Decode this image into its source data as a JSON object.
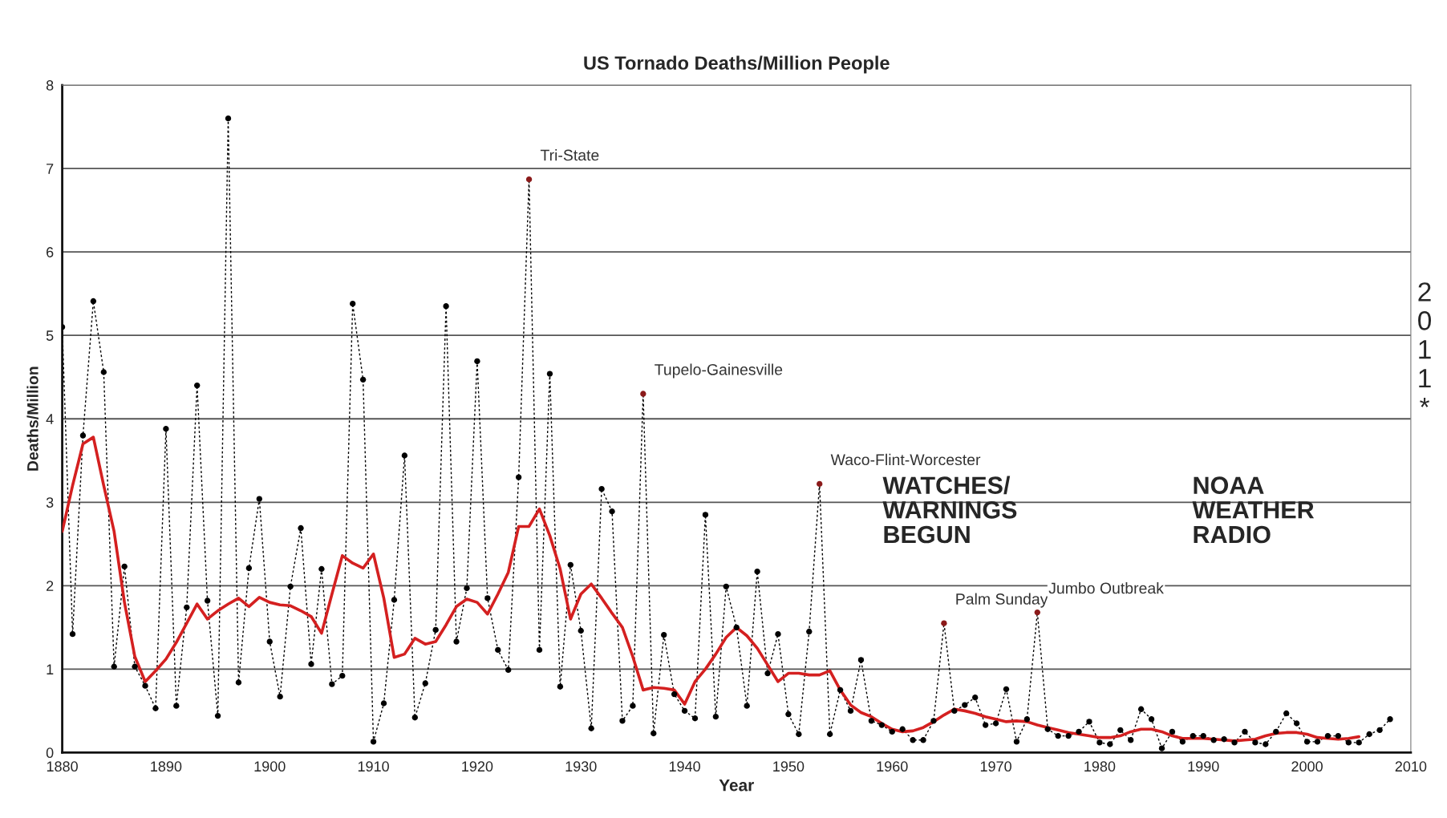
{
  "chart_data": {
    "type": "line",
    "title": "US Tornado Deaths/Million People",
    "xlabel": "Year",
    "ylabel": "Deaths/Million",
    "xlim": [
      1880,
      2010
    ],
    "xticks": [
      1880,
      1890,
      1900,
      1910,
      1920,
      1930,
      1940,
      1950,
      1960,
      1970,
      1980,
      1990,
      2000,
      2010
    ],
    "ylim": [
      0,
      8
    ],
    "yticks": [
      0,
      1,
      2,
      3,
      4,
      5,
      6,
      7,
      8
    ],
    "grid": "y",
    "legend": false,
    "series": [
      {
        "color": "#000000",
        "marker": "circle",
        "line_style": "dotted",
        "x": [
          1880,
          1881,
          1882,
          1883,
          1884,
          1885,
          1886,
          1887,
          1888,
          1889,
          1890,
          1891,
          1892,
          1893,
          1894,
          1895,
          1896,
          1897,
          1898,
          1899,
          1900,
          1901,
          1902,
          1903,
          1904,
          1905,
          1906,
          1907,
          1908,
          1909,
          1910,
          1911,
          1912,
          1913,
          1914,
          1915,
          1916,
          1917,
          1918,
          1919,
          1920,
          1921,
          1922,
          1923,
          1924,
          1925,
          1926,
          1927,
          1928,
          1929,
          1930,
          1931,
          1932,
          1933,
          1934,
          1935,
          1936,
          1937,
          1938,
          1939,
          1940,
          1941,
          1942,
          1943,
          1944,
          1945,
          1946,
          1947,
          1948,
          1949,
          1950,
          1951,
          1952,
          1953,
          1954,
          1955,
          1956,
          1957,
          1958,
          1959,
          1960,
          1961,
          1962,
          1963,
          1964,
          1965,
          1966,
          1967,
          1968,
          1969,
          1970,
          1971,
          1972,
          1973,
          1974,
          1975,
          1976,
          1977,
          1978,
          1979,
          1980,
          1981,
          1982,
          1983,
          1984,
          1985,
          1986,
          1987,
          1988,
          1989,
          1990,
          1991,
          1992,
          1993,
          1994,
          1995,
          1996,
          1997,
          1998,
          1999,
          2000,
          2001,
          2002,
          2003,
          2004,
          2005,
          2006,
          2007,
          2008
        ],
        "values": [
          5.1,
          1.42,
          3.8,
          5.41,
          4.56,
          1.03,
          2.23,
          1.03,
          0.8,
          0.53,
          3.88,
          0.56,
          1.74,
          4.4,
          1.82,
          0.44,
          7.6,
          0.84,
          2.21,
          3.04,
          1.33,
          0.67,
          1.99,
          2.69,
          1.06,
          2.2,
          0.82,
          0.92,
          5.38,
          4.47,
          0.13,
          0.59,
          1.83,
          3.56,
          0.42,
          0.83,
          1.47,
          5.35,
          1.33,
          1.97,
          4.69,
          1.85,
          1.23,
          0.99,
          3.3,
          6.87,
          1.23,
          4.54,
          0.79,
          2.25,
          1.46,
          0.29,
          3.16,
          2.89,
          0.38,
          0.56,
          4.3,
          0.23,
          1.41,
          0.7,
          0.5,
          0.41,
          2.85,
          0.43,
          1.99,
          1.5,
          0.56,
          2.17,
          0.95,
          1.42,
          0.46,
          0.22,
          1.45,
          3.22,
          0.22,
          0.75,
          0.5,
          1.11,
          0.38,
          0.33,
          0.25,
          0.28,
          0.15,
          0.15,
          0.38,
          1.55,
          0.5,
          0.57,
          0.66,
          0.33,
          0.35,
          0.76,
          0.13,
          0.4,
          1.68,
          0.28,
          0.2,
          0.2,
          0.25,
          0.37,
          0.12,
          0.1,
          0.27,
          0.15,
          0.52,
          0.4,
          0.05,
          0.25,
          0.13,
          0.2,
          0.2,
          0.15,
          0.16,
          0.12,
          0.25,
          0.12,
          0.1,
          0.25,
          0.47,
          0.35,
          0.13,
          0.13,
          0.2,
          0.2,
          0.12,
          0.12,
          0.22,
          0.27,
          0.4
        ],
        "colors": [
          "#000000",
          "#000000",
          "#000000",
          "#000000",
          "#000000",
          "#000000",
          "#000000",
          "#000000",
          "#000000",
          "#000000",
          "#000000",
          "#000000",
          "#000000",
          "#000000",
          "#000000",
          "#000000",
          "#000000",
          "#000000",
          "#000000",
          "#000000",
          "#000000",
          "#000000",
          "#000000",
          "#000000",
          "#000000",
          "#000000",
          "#000000",
          "#000000",
          "#000000",
          "#000000",
          "#000000",
          "#000000",
          "#000000",
          "#000000",
          "#000000",
          "#000000",
          "#000000",
          "#000000",
          "#000000",
          "#000000",
          "#000000",
          "#000000",
          "#000000",
          "#000000",
          "#000000",
          "#8b1a1a",
          "#000000",
          "#000000",
          "#000000",
          "#000000",
          "#000000",
          "#000000",
          "#000000",
          "#000000",
          "#000000",
          "#000000",
          "#8b1a1a",
          "#000000",
          "#000000",
          "#000000",
          "#000000",
          "#000000",
          "#000000",
          "#000000",
          "#000000",
          "#000000",
          "#000000",
          "#000000",
          "#000000",
          "#000000",
          "#000000",
          "#000000",
          "#000000",
          "#8b1a1a",
          "#000000",
          "#000000",
          "#000000",
          "#000000",
          "#000000",
          "#000000",
          "#000000",
          "#000000",
          "#000000",
          "#000000",
          "#000000",
          "#8b1a1a",
          "#000000",
          "#000000",
          "#000000",
          "#000000",
          "#000000",
          "#000000",
          "#000000",
          "#000000",
          "#8b1a1a",
          "#000000",
          "#000000",
          "#000000",
          "#000000",
          "#000000",
          "#000000",
          "#000000",
          "#000000",
          "#000000",
          "#000000",
          "#000000",
          "#000000",
          "#000000",
          "#000000",
          "#000000",
          "#000000",
          "#000000",
          "#000000",
          "#000000",
          "#000000",
          "#000000",
          "#000000",
          "#000000",
          "#000000",
          "#000000",
          "#000000",
          "#000000",
          "#000000",
          "#000000",
          "#000000",
          "#000000",
          "#000000",
          "#000000",
          "#000000"
        ]
      },
      {
        "color": "#d42020",
        "marker": "none",
        "line_style": "solid",
        "x": [
          1880,
          1881,
          1882,
          1883,
          1884,
          1885,
          1886,
          1887,
          1888,
          1889,
          1890,
          1891,
          1892,
          1893,
          1894,
          1895,
          1896,
          1897,
          1898,
          1899,
          1900,
          1901,
          1902,
          1903,
          1904,
          1905,
          1906,
          1907,
          1908,
          1909,
          1910,
          1911,
          1912,
          1913,
          1914,
          1915,
          1916,
          1917,
          1918,
          1919,
          1920,
          1921,
          1922,
          1923,
          1924,
          1925,
          1926,
          1927,
          1928,
          1929,
          1930,
          1931,
          1932,
          1933,
          1934,
          1935,
          1936,
          1937,
          1938,
          1939,
          1940,
          1941,
          1942,
          1943,
          1944,
          1945,
          1946,
          1947,
          1948,
          1949,
          1950,
          1951,
          1952,
          1953,
          1954,
          1955,
          1956,
          1957,
          1958,
          1959,
          1960,
          1961,
          1962,
          1963,
          1964,
          1965,
          1966,
          1967,
          1968,
          1969,
          1970,
          1971,
          1972,
          1973,
          1974,
          1975,
          1976,
          1977,
          1978,
          1979,
          1980,
          1981,
          1982,
          1983,
          1984,
          1985,
          1986,
          1987,
          1988,
          1989,
          1990,
          1991,
          1992,
          1993,
          1994,
          1995,
          1996,
          1997,
          1998,
          1999,
          2000,
          2001,
          2002,
          2003,
          2004,
          2005
        ],
        "values": [
          2.65,
          3.2,
          3.7,
          3.78,
          3.2,
          2.65,
          1.8,
          1.15,
          0.85,
          0.98,
          1.12,
          1.32,
          1.55,
          1.78,
          1.6,
          1.7,
          1.78,
          1.85,
          1.75,
          1.86,
          1.8,
          1.77,
          1.76,
          1.7,
          1.63,
          1.43,
          1.9,
          2.36,
          2.27,
          2.21,
          2.38,
          1.85,
          1.14,
          1.18,
          1.37,
          1.3,
          1.33,
          1.53,
          1.75,
          1.84,
          1.8,
          1.66,
          1.9,
          2.16,
          2.71,
          2.71,
          2.92,
          2.6,
          2.2,
          1.6,
          1.9,
          2.02,
          1.85,
          1.67,
          1.5,
          1.15,
          0.75,
          0.78,
          0.77,
          0.75,
          0.58,
          0.85,
          1.0,
          1.18,
          1.38,
          1.5,
          1.4,
          1.25,
          1.05,
          0.85,
          0.95,
          0.95,
          0.93,
          0.93,
          0.98,
          0.75,
          0.57,
          0.48,
          0.43,
          0.35,
          0.28,
          0.25,
          0.26,
          0.3,
          0.37,
          0.45,
          0.52,
          0.5,
          0.47,
          0.43,
          0.4,
          0.37,
          0.38,
          0.37,
          0.33,
          0.3,
          0.27,
          0.24,
          0.22,
          0.2,
          0.18,
          0.18,
          0.2,
          0.25,
          0.28,
          0.28,
          0.25,
          0.2,
          0.17,
          0.17,
          0.17,
          0.16,
          0.15,
          0.14,
          0.15,
          0.16,
          0.2,
          0.23,
          0.24,
          0.24,
          0.22,
          0.18,
          0.17,
          0.16,
          0.17,
          0.19
        ]
      }
    ],
    "annotations": [
      {
        "text": "Tri-State",
        "x": 1925,
        "y": 6.87
      },
      {
        "text": "Tupelo-Gainesville",
        "x": 1936,
        "y": 4.3
      },
      {
        "text": "Waco-Flint-Worcester",
        "x": 1953,
        "y": 3.22
      },
      {
        "text": "Palm Sunday",
        "x": 1965,
        "y": 1.55
      },
      {
        "text": "Jumbo Outbreak",
        "x": 1974,
        "y": 1.68
      },
      "WATCHES/\nWARNINGS\nBEGUN",
      "NOAA\nWEATHER\nRADIO",
      "2011*"
    ]
  }
}
